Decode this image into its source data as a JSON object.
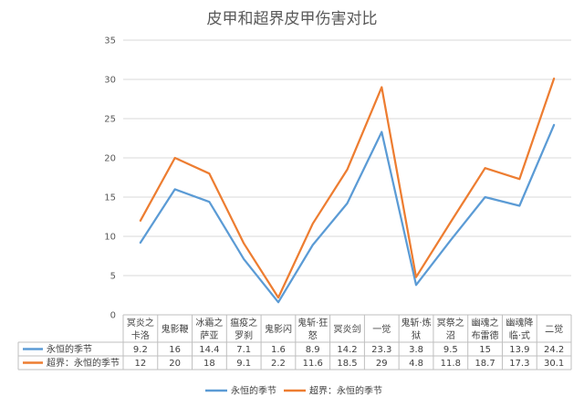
{
  "chart_data": {
    "type": "line",
    "title": "皮甲和超界皮甲伤害对比",
    "xlabel": "",
    "ylabel": "",
    "ylim": [
      0,
      35
    ],
    "yticks": [
      "0",
      "5",
      "10",
      "15",
      "20",
      "25",
      "30",
      "35"
    ],
    "grid": true,
    "legend_position": "bottom",
    "data_table": true,
    "categories": [
      [
        "冥炎之",
        "卡洛"
      ],
      [
        "鬼影鞭"
      ],
      [
        "冰霜之",
        "萨亚"
      ],
      [
        "瘟疫之",
        "罗刹"
      ],
      [
        "鬼影闪"
      ],
      [
        "鬼斩·狂",
        "怒"
      ],
      [
        "冥炎剑"
      ],
      [
        "一觉"
      ],
      [
        "鬼斩·炼",
        "狱"
      ],
      [
        "冥祭之",
        "沼"
      ],
      [
        "幽魂之",
        "布雷德"
      ],
      [
        "幽魂降",
        "临·式"
      ],
      [
        "二觉"
      ]
    ],
    "series": [
      {
        "name": "永恒的季节",
        "color": "#5b9bd5",
        "values": [
          9.2,
          16,
          14.4,
          7.1,
          1.6,
          8.9,
          14.2,
          23.3,
          3.8,
          9.5,
          15,
          13.9,
          24.2
        ],
        "labels": [
          "9.2",
          "16",
          "14.4",
          "7.1",
          "1.6",
          "8.9",
          "14.2",
          "23.3",
          "3.8",
          "9.5",
          "15",
          "13.9",
          "24.2"
        ]
      },
      {
        "name": "超界：永恒的季节",
        "color": "#ed7d31",
        "values": [
          12,
          20,
          18,
          9.1,
          2.2,
          11.6,
          18.5,
          29,
          4.8,
          11.8,
          18.7,
          17.3,
          30.1
        ],
        "labels": [
          "12",
          "20",
          "18",
          "9.1",
          "2.2",
          "11.6",
          "18.5",
          "29",
          "4.8",
          "11.8",
          "18.7",
          "17.3",
          "30.1"
        ]
      }
    ]
  }
}
